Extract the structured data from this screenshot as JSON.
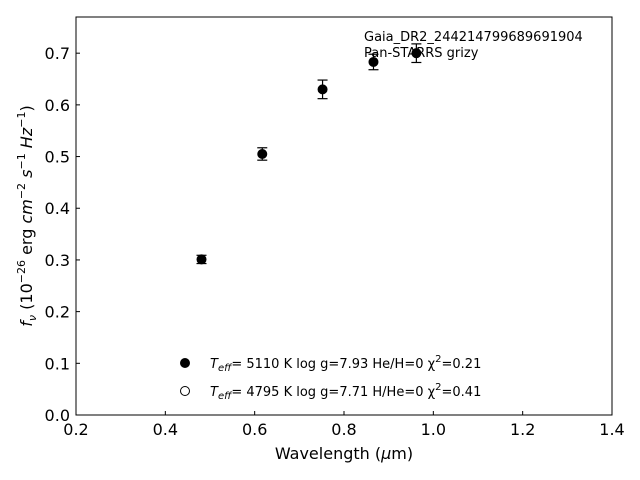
{
  "chart_data": {
    "type": "scatter",
    "xlabel": "Wavelength (μm)",
    "ylabel": "f_ν (10^-26 erg cm^-2 s^-1 Hz^-1)",
    "xlim": [
      0.2,
      1.4
    ],
    "ylim": [
      0.0,
      0.77
    ],
    "xticks": [
      "0.2",
      "0.4",
      "0.6",
      "0.8",
      "1.0",
      "1.2",
      "1.4"
    ],
    "yticks": [
      "0.0",
      "0.1",
      "0.2",
      "0.3",
      "0.4",
      "0.5",
      "0.6",
      "0.7"
    ],
    "grid": false,
    "annotations": [
      "Gaia_DR2_244214799689691904",
      "Pan-STARRS grizy"
    ],
    "series": [
      {
        "marker": "filled-circle",
        "x": [
          0.481,
          0.617,
          0.752,
          0.866,
          0.962
        ],
        "y": [
          0.301,
          0.505,
          0.63,
          0.683,
          0.7
        ],
        "yerr": [
          0.008,
          0.012,
          0.018,
          0.015,
          0.018
        ]
      }
    ],
    "legend": {
      "placement": "lower-center",
      "entries": [
        {
          "marker": "filled-circle",
          "teff_label": "T",
          "teff_sub": "eff",
          "text": "=  5110 K  log g=7.93  He/H=0  χ",
          "sup": "2",
          "tail": "=0.21"
        },
        {
          "marker": "open-circle",
          "teff_label": "T",
          "teff_sub": "eff",
          "text": "=  4795 K  log g=7.71  H/He=0  χ",
          "sup": "2",
          "tail": "=0.41"
        }
      ]
    }
  }
}
